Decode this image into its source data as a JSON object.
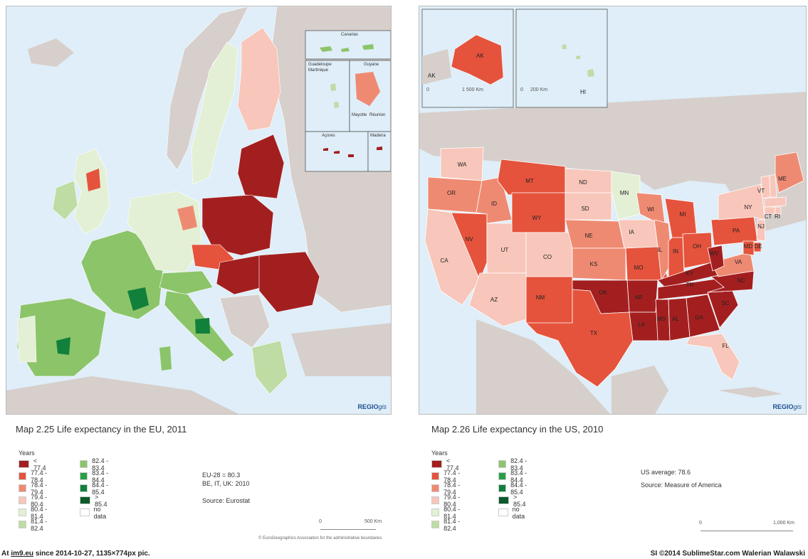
{
  "eu": {
    "title": "Map 2.25 Life expectancy in the EU, 2011",
    "legend_title": "Years",
    "legend_left": [
      {
        "label": "< 77.4",
        "color": "#a31f1f"
      },
      {
        "label": "77.4 - 78.4",
        "color": "#e5533c"
      },
      {
        "label": "78.4 - 79.4",
        "color": "#ef8a72"
      },
      {
        "label": "79.4 - 80.4",
        "color": "#f8c6ba"
      },
      {
        "label": "80.4 - 81.4",
        "color": "#e3f0d5"
      },
      {
        "label": "81.4 - 82.4",
        "color": "#bedca3"
      }
    ],
    "legend_right": [
      {
        "label": "82.4 - 83.4",
        "color": "#8cc46a"
      },
      {
        "label": "83.4 - 84.4",
        "color": "#27a046"
      },
      {
        "label": "84.4 - 85.4",
        "color": "#11803a"
      },
      {
        "label": "> 85.4",
        "color": "#0b5a2a"
      },
      {
        "label": "no data",
        "color": "#ffffff"
      }
    ],
    "stats": [
      "EU-28 = 80.3",
      "BE, IT, UK: 2010",
      "",
      "Source: Eurostat"
    ],
    "scale": {
      "zero": "0",
      "end": "500 Km"
    },
    "insets": {
      "canarias": "Canarias",
      "guadeloupe": "Guadeloupe",
      "martinique": "Martinique",
      "guyane": "Guyane",
      "mayotte": "Mayotte",
      "reunion": "Réunion",
      "acores": "Açores",
      "madeira": "Madeira"
    },
    "copyright": "© EuroGeographics Association for the administrative boundaries",
    "regio": "REGIO",
    "regio_gis": "gis"
  },
  "us": {
    "title": "Map 2.26 Life expectancy in the US, 2010",
    "legend_title": "Years",
    "legend_left": [
      {
        "label": "< 77.4",
        "color": "#a31f1f"
      },
      {
        "label": "77.4 - 78.4",
        "color": "#e5533c"
      },
      {
        "label": "78.4 - 79.4",
        "color": "#ef8a72"
      },
      {
        "label": "79.4 - 80.4",
        "color": "#f8c6ba"
      },
      {
        "label": "80.4 - 81.4",
        "color": "#e3f0d5"
      },
      {
        "label": "81.4 - 82.4",
        "color": "#bedca3"
      }
    ],
    "legend_right": [
      {
        "label": "82.4 - 83.4",
        "color": "#8cc46a"
      },
      {
        "label": "83.4 - 84.4",
        "color": "#27a046"
      },
      {
        "label": "84.4 - 85.4",
        "color": "#11803a"
      },
      {
        "label": "> 85.4",
        "color": "#0b5a2a"
      },
      {
        "label": "no data",
        "color": "#ffffff"
      }
    ],
    "stats": [
      "US average: 78.6",
      "Source: Measure of America"
    ],
    "scale": {
      "zero": "0",
      "end": "1,000 Km"
    },
    "alaska_scale": {
      "zero": "0",
      "end": "1 500 Km"
    },
    "hawaii_scale": {
      "zero": "0",
      "end": "200 Km"
    },
    "regio": "REGIO",
    "regio_gis": "gis",
    "states": [
      {
        "code": "WA",
        "bin": 3
      },
      {
        "code": "OR",
        "bin": 2
      },
      {
        "code": "CA",
        "bin": 3
      },
      {
        "code": "NV",
        "bin": 1
      },
      {
        "code": "ID",
        "bin": 2
      },
      {
        "code": "MT",
        "bin": 1
      },
      {
        "code": "WY",
        "bin": 1
      },
      {
        "code": "UT",
        "bin": 3
      },
      {
        "code": "AZ",
        "bin": 3
      },
      {
        "code": "CO",
        "bin": 3
      },
      {
        "code": "NM",
        "bin": 1
      },
      {
        "code": "ND",
        "bin": 3
      },
      {
        "code": "SD",
        "bin": 3
      },
      {
        "code": "NE",
        "bin": 2
      },
      {
        "code": "KS",
        "bin": 2
      },
      {
        "code": "OK",
        "bin": 0
      },
      {
        "code": "TX",
        "bin": 1
      },
      {
        "code": "MN",
        "bin": 4
      },
      {
        "code": "IA",
        "bin": 3
      },
      {
        "code": "MO",
        "bin": 1
      },
      {
        "code": "AR",
        "bin": 0
      },
      {
        "code": "LA",
        "bin": 0
      },
      {
        "code": "WI",
        "bin": 2
      },
      {
        "code": "IL",
        "bin": 2
      },
      {
        "code": "MI",
        "bin": 1
      },
      {
        "code": "IN",
        "bin": 1
      },
      {
        "code": "OH",
        "bin": 1
      },
      {
        "code": "KY",
        "bin": 0
      },
      {
        "code": "TN",
        "bin": 0
      },
      {
        "code": "MS",
        "bin": 0
      },
      {
        "code": "AL",
        "bin": 0
      },
      {
        "code": "GA",
        "bin": 0
      },
      {
        "code": "FL",
        "bin": 3
      },
      {
        "code": "SC",
        "bin": 0
      },
      {
        "code": "NC",
        "bin": 0
      },
      {
        "code": "VA",
        "bin": 2
      },
      {
        "code": "WV",
        "bin": 0
      },
      {
        "code": "PA",
        "bin": 1
      },
      {
        "code": "NY",
        "bin": 3
      },
      {
        "code": "VT",
        "bin": 3
      },
      {
        "code": "NH",
        "bin": 3
      },
      {
        "code": "ME",
        "bin": 2
      },
      {
        "code": "MA",
        "bin": 3
      },
      {
        "code": "CT",
        "bin": 3
      },
      {
        "code": "RI",
        "bin": 3
      },
      {
        "code": "NJ",
        "bin": 3
      },
      {
        "code": "DE",
        "bin": 1
      },
      {
        "code": "MD",
        "bin": 1
      },
      {
        "code": "AK",
        "bin": 1
      },
      {
        "code": "HI",
        "bin": 5
      }
    ]
  },
  "footer": {
    "prefix": "At",
    "site": "im9.eu",
    "suffix": "since 2014-10-27, 1135×774px pic.",
    "right": "SI ©2014 SublimeStar.com Walerian Walawski"
  }
}
